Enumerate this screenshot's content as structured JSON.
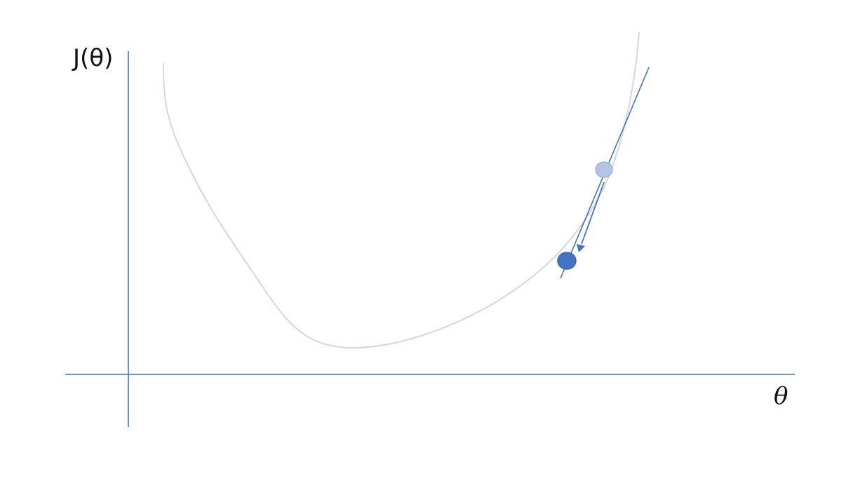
{
  "diagram": {
    "y_axis_label": "J(θ)",
    "x_axis_label": "θ",
    "colors": {
      "axis": "#4472c4",
      "curve": "#d3d6e3",
      "tangent": "#4472c4",
      "arrow": "#4472c4",
      "start_point_fill": "#b4c4e7",
      "end_point_fill": "#4472c4"
    },
    "elements": [
      "cost-curve",
      "tangent-line",
      "step-arrow",
      "start-point",
      "end-point"
    ]
  }
}
